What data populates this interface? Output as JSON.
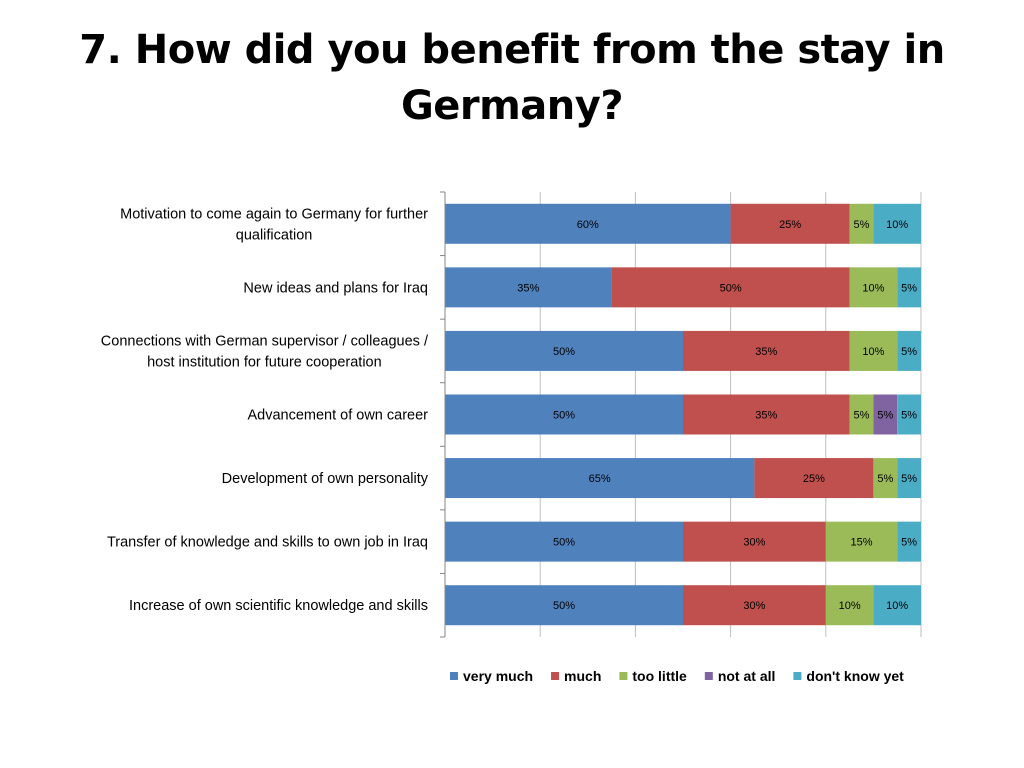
{
  "title": {
    "line1": "7. How did you benefit from the stay in",
    "line2": "Germany?"
  },
  "chart_data": {
    "type": "bar",
    "orientation": "horizontal",
    "stacked": true,
    "percent_stacked": true,
    "xlim": [
      0,
      100
    ],
    "grid": true,
    "legend_position": "bottom",
    "categories": [
      [
        "Motivation to come again to Germany for further",
        "qualification"
      ],
      [
        "New ideas and plans for Iraq"
      ],
      [
        "Connections with German supervisor / colleagues /",
        "host institution for future cooperation"
      ],
      [
        "Advancement of own career"
      ],
      [
        "Development of own personality"
      ],
      [
        "Transfer of knowledge and skills to own job in Iraq"
      ],
      [
        "Increase of own scientific knowledge and skills"
      ]
    ],
    "series": [
      {
        "name": "very much",
        "color": "#4F81BD",
        "values": [
          60,
          35,
          50,
          50,
          65,
          50,
          50
        ]
      },
      {
        "name": "much",
        "color": "#C0504D",
        "values": [
          25,
          50,
          35,
          35,
          25,
          30,
          30
        ]
      },
      {
        "name": "too little",
        "color": "#9BBB59",
        "values": [
          5,
          10,
          10,
          5,
          5,
          15,
          10
        ]
      },
      {
        "name": "not at all",
        "color": "#8064A2",
        "values": [
          0,
          0,
          0,
          5,
          0,
          0,
          0
        ]
      },
      {
        "name": "don't know yet",
        "color": "#4BACC6",
        "values": [
          10,
          5,
          5,
          5,
          5,
          5,
          10
        ]
      }
    ]
  }
}
